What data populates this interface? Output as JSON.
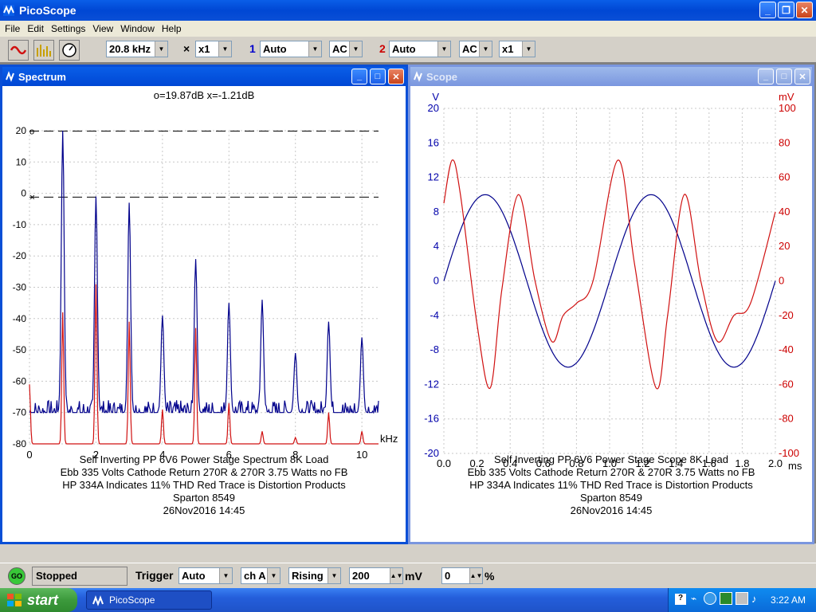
{
  "app": {
    "title": "PicoScope"
  },
  "menu": [
    "File",
    "Edit",
    "Settings",
    "View",
    "Window",
    "Help"
  ],
  "toolbar": {
    "timebase": "20.8 kHz",
    "x_mult_symbol": "×",
    "x_mult": "x1",
    "chA_label": "1",
    "chA_range": "Auto",
    "chA_coupling": "AC",
    "chB_label": "2",
    "chB_range": "Auto",
    "chB_coupling": "AC",
    "chB_mult": "x1"
  },
  "spectrum": {
    "title": "Spectrum",
    "readout": "o=19.87dB  x=-1.21dB",
    "xunit": "kHz",
    "caption": [
      "Self Inverting PP 6V6 Power Stage Spectrum 8K Load",
      "Ebb 335 Volts Cathode Return 270R & 270R 3.75 Watts no FB",
      "HP 334A Indicates 11% THD Red Trace is Distortion Products",
      "Sparton 8549",
      "26Nov2016  14:45"
    ]
  },
  "scope": {
    "title": "Scope",
    "yunit_left": "V",
    "yunit_right": "mV",
    "xunit": "ms",
    "caption": [
      "Self Inverting PP 6V6 Power Stage Scope 8K Load",
      "Ebb 335 Volts Cathode Return 270R & 270R 3.75 Watts no FB",
      "HP 334A Indicates 11% THD Red Trace is Distortion Products",
      "Sparton 8549",
      "26Nov2016  14:45"
    ]
  },
  "status": {
    "go": "GO",
    "state": "Stopped",
    "trigger_label": "Trigger",
    "trigger_mode": "Auto",
    "trigger_channel": "ch A",
    "trigger_edge": "Rising",
    "trigger_level": "200",
    "level_unit": "mV",
    "pretrigger": "0",
    "pretrigger_unit": "%"
  },
  "taskbar": {
    "start": "start",
    "task": "PicoScope",
    "time": "3:22 AM"
  },
  "colors": {
    "blue_trace": "#00008b",
    "red_trace": "#d01010",
    "chA": "#0000cc",
    "chB": "#cc0000"
  },
  "chart_data": [
    {
      "type": "line",
      "title": "o=19.87dB  x=-1.21dB",
      "xlabel": "kHz",
      "ylabel": "",
      "xlim": [
        0,
        10.5
      ],
      "ylim": [
        -80,
        20
      ],
      "xticks": [
        0,
        2,
        4,
        6,
        8,
        10
      ],
      "yticks": [
        20,
        10,
        0,
        -10,
        -20,
        -30,
        -40,
        -50,
        -60,
        -70,
        -80
      ],
      "markers": {
        "o_dB": 19.87,
        "x_dB": -1.21
      },
      "series": [
        {
          "color": "#00008b",
          "peaks_kHz": [
            1,
            2,
            3,
            4,
            5,
            6,
            7,
            8,
            9,
            10
          ],
          "peaks_dB": [
            20,
            -1,
            -3,
            -39,
            -21,
            -35,
            -34,
            -51,
            -41,
            -46
          ],
          "floor_dB": -70
        },
        {
          "color": "#d01010",
          "peaks_kHz": [
            0,
            1,
            2,
            3,
            4,
            5,
            6,
            7,
            8,
            9,
            10
          ],
          "peaks_dB": [
            -61,
            -38,
            -29,
            -41,
            -69,
            -43,
            -67,
            -76,
            -78,
            -70,
            -76
          ],
          "floor_dB": -80
        }
      ]
    },
    {
      "type": "line",
      "xlabel": "ms",
      "ylabel": "V",
      "y2label": "mV",
      "xlim": [
        0,
        2
      ],
      "ylim": [
        -20,
        20
      ],
      "y2lim": [
        -100,
        100
      ],
      "xticks": [
        0.0,
        0.2,
        0.4,
        0.6,
        0.8,
        1.0,
        1.2,
        1.4,
        1.6,
        1.8,
        2.0
      ],
      "yticks": [
        20,
        16,
        12,
        8,
        4,
        0,
        -4,
        -8,
        -12,
        -16,
        -20
      ],
      "y2ticks": [
        100,
        80,
        60,
        40,
        20,
        0,
        -20,
        -40,
        -60,
        -80,
        -100
      ],
      "series": [
        {
          "color": "#00008b",
          "axis": "V",
          "frequency_kHz": 1,
          "amplitude_V": 10
        },
        {
          "color": "#d01010",
          "axis": "mV",
          "x": [
            0,
            0.05,
            0.1,
            0.2,
            0.28,
            0.35,
            0.45,
            0.55,
            0.65,
            0.72,
            0.8,
            0.9,
            1.05,
            1.15,
            1.28,
            1.35,
            1.45,
            1.55,
            1.65,
            1.75,
            1.85,
            2.0
          ],
          "y": [
            45,
            70,
            50,
            -25,
            -62,
            -5,
            50,
            0,
            -35,
            -20,
            -13,
            0,
            70,
            10,
            -62,
            -20,
            50,
            0,
            -35,
            -20,
            -13,
            40
          ]
        }
      ]
    }
  ]
}
